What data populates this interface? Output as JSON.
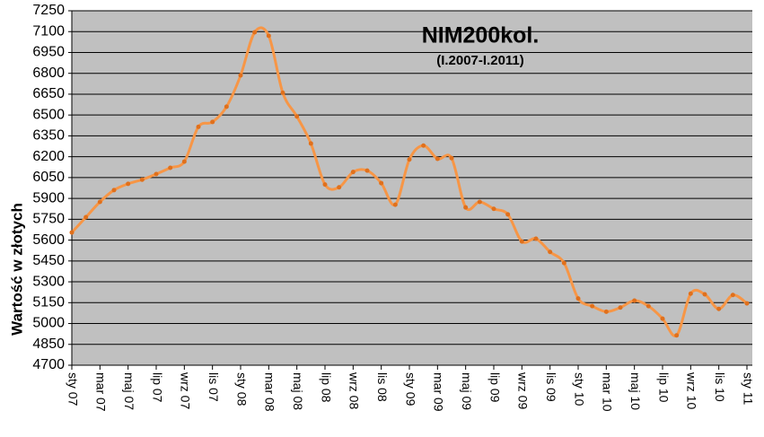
{
  "chart_data": {
    "type": "line",
    "title": "NIM200kol.",
    "subtitle": "(I.2007-I.2011)",
    "y_label": "Wartość w złotych",
    "categories": [
      "sty 07",
      null,
      "mar 07",
      null,
      "maj 07",
      null,
      "lip 07",
      null,
      "wrz 07",
      null,
      "lis 07",
      null,
      "sty 08",
      null,
      "mar 08",
      null,
      "maj 08",
      null,
      "lip 08",
      null,
      "wrz 08",
      null,
      "lis 08",
      null,
      "sty 09",
      null,
      "mar 09",
      null,
      "maj 09",
      null,
      "lip 09",
      null,
      "wrz 09",
      null,
      "lis 09",
      null,
      "sty 10",
      null,
      "mar 10",
      null,
      "maj 10",
      null,
      "lip 10",
      null,
      "wrz 10",
      null,
      "lis 10",
      null,
      "sty 11"
    ],
    "series": [
      {
        "name": "NIM200kol.",
        "color": "#f79646",
        "marker_color": "#e0701c",
        "values": [
          5655,
          5765,
          5875,
          5960,
          6005,
          6035,
          6075,
          6120,
          6165,
          6415,
          6450,
          6560,
          6785,
          7095,
          7070,
          6660,
          6490,
          6295,
          6000,
          5980,
          6090,
          6100,
          6010,
          5855,
          6180,
          6280,
          6185,
          6190,
          5835,
          5875,
          5825,
          5785,
          5590,
          5610,
          5515,
          5435,
          5180,
          5125,
          5085,
          5115,
          5165,
          5125,
          5035,
          4915,
          5215,
          5210,
          5105,
          5205,
          5145
        ]
      }
    ],
    "ylim": [
      4700,
      7250
    ],
    "yticks": [
      4700,
      4850,
      5000,
      5150,
      5300,
      5450,
      5600,
      5750,
      5900,
      6050,
      6200,
      6350,
      6500,
      6650,
      6800,
      6950,
      7100,
      7250
    ],
    "grid": true
  }
}
